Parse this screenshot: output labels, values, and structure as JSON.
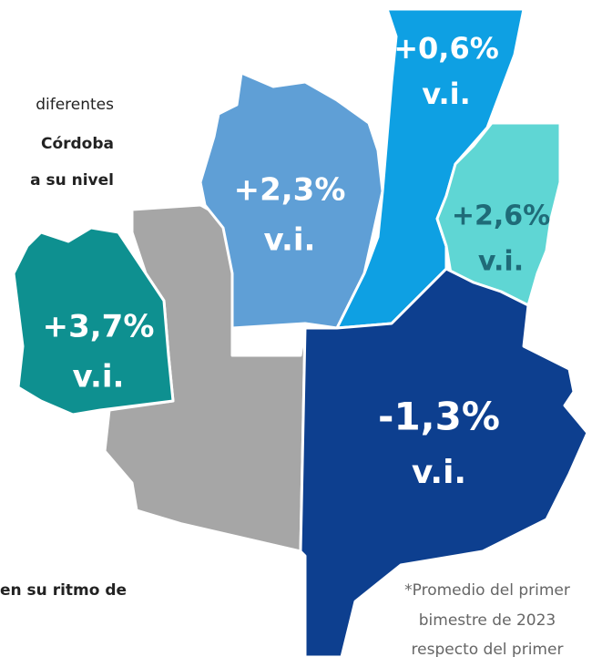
{
  "intro": [
    "diferentes",
    "Córdoba",
    "a su nivel"
  ],
  "outro": [
    "en su ritmo de"
  ],
  "regions": [
    {
      "value": "+0,6%",
      "unit": "v.i."
    },
    {
      "value": "+2,3%",
      "unit": "v.i."
    },
    {
      "value": "+2,6%",
      "unit": "v.i."
    },
    {
      "value": "+3,7%",
      "unit": "v.i."
    },
    {
      "value": "-1,3%",
      "unit": "v.i."
    }
  ],
  "footnote": [
    "*Promedio del primer",
    "bimestre de 2023",
    "respecto del primer"
  ]
}
